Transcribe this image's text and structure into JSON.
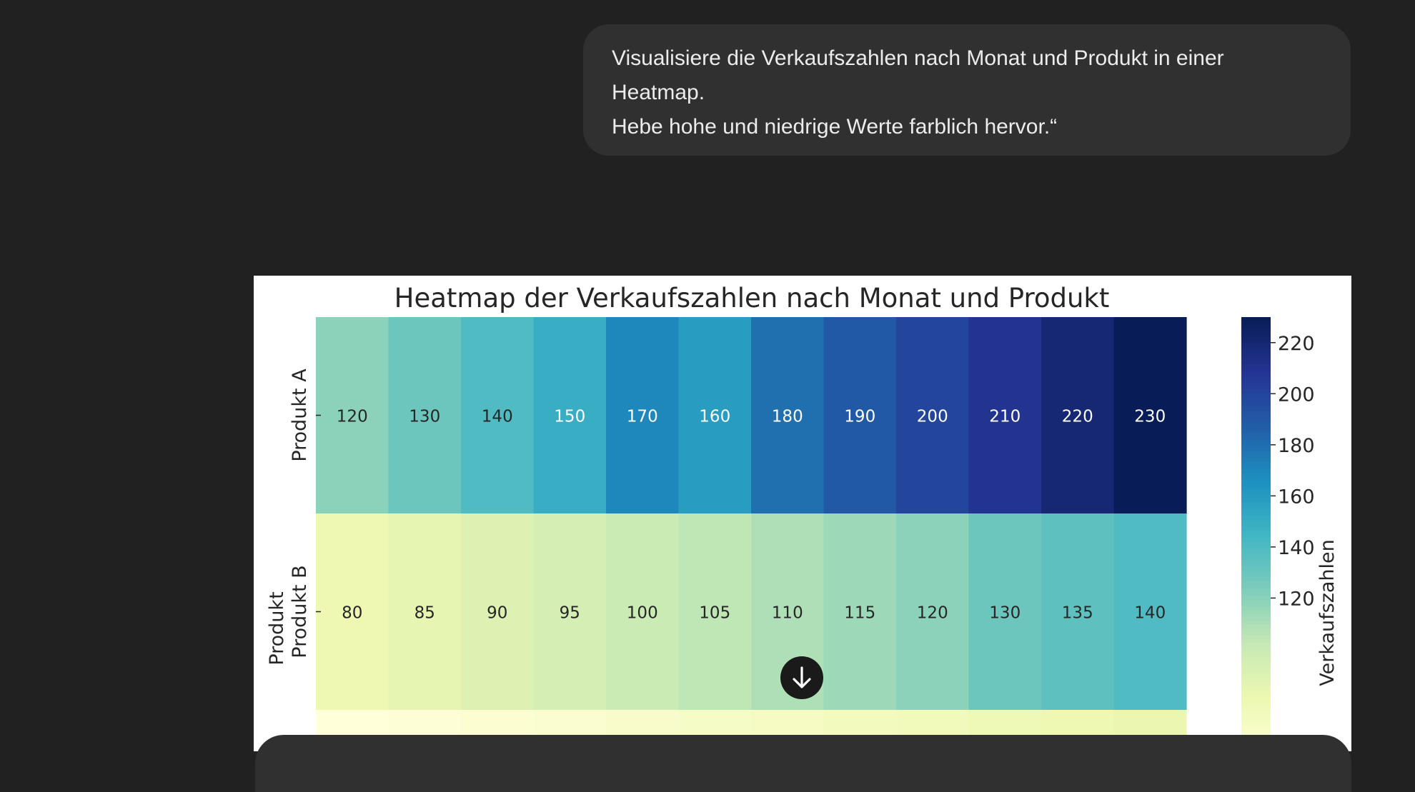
{
  "conversation": {
    "user_message": {
      "lines": [
        "Visualisiere die Verkaufszahlen nach Monat und Produkt in einer",
        "Heatmap.",
        "Hebe hohe und niedrige Werte farblich hervor.“"
      ]
    }
  },
  "controls": {
    "scroll_down_icon": "arrow-down-icon"
  },
  "chart_data": {
    "type": "heatmap",
    "title": "Heatmap der Verkaufszahlen nach Monat und Produkt",
    "ylabel": "Produkt",
    "colorbar_label": "Verkaufszahlen",
    "colormap": "YlGnBu",
    "rows": [
      "Produkt A",
      "Produkt B"
    ],
    "values": [
      [
        120,
        130,
        140,
        150,
        170,
        160,
        180,
        190,
        200,
        210,
        220,
        230
      ],
      [
        80,
        85,
        90,
        95,
        100,
        105,
        110,
        115,
        120,
        130,
        135,
        140
      ]
    ],
    "colorbar_ticks": [
      120,
      140,
      160,
      180,
      200,
      220
    ],
    "vmin": 60,
    "vmax": 230
  }
}
